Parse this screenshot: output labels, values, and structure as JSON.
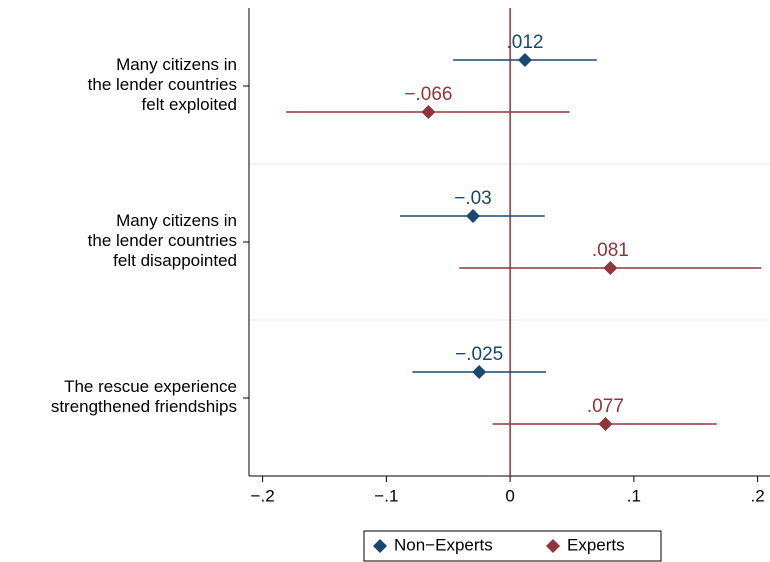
{
  "chart_data": {
    "type": "coefplot",
    "categories": [
      [
        "Many citizens in",
        "the lender countries",
        "felt exploited"
      ],
      [
        "Many citizens in",
        "the lender countries",
        "felt disappointed"
      ],
      [
        "The rescue experience",
        "strengthened friendships"
      ]
    ],
    "series": [
      {
        "name": "Non−Experts",
        "color": "#1a476f",
        "values": [
          0.012,
          -0.03,
          -0.025
        ],
        "value_labels": [
          ".012",
          "−.03",
          "−.025"
        ],
        "ci_low": [
          -0.046,
          -0.089,
          -0.079
        ],
        "ci_high": [
          0.07,
          0.028,
          0.029
        ]
      },
      {
        "name": "Experts",
        "color": "#90353b",
        "values": [
          -0.066,
          0.081,
          0.077
        ],
        "value_labels": [
          "−.066",
          ".081",
          ".077"
        ],
        "ci_low": [
          -0.181,
          -0.041,
          -0.014
        ],
        "ci_high": [
          0.048,
          0.203,
          0.167
        ]
      }
    ],
    "xlim": [
      -0.211,
      0.21
    ],
    "xticks": [
      {
        "value": -0.2,
        "label": "−.2"
      },
      {
        "value": -0.1,
        "label": "−.1"
      },
      0,
      {
        "value": 0.1,
        "label": ".1"
      },
      {
        "value": 0.2,
        "label": ".2"
      }
    ],
    "reference_line": 0,
    "legend": "bottom"
  }
}
